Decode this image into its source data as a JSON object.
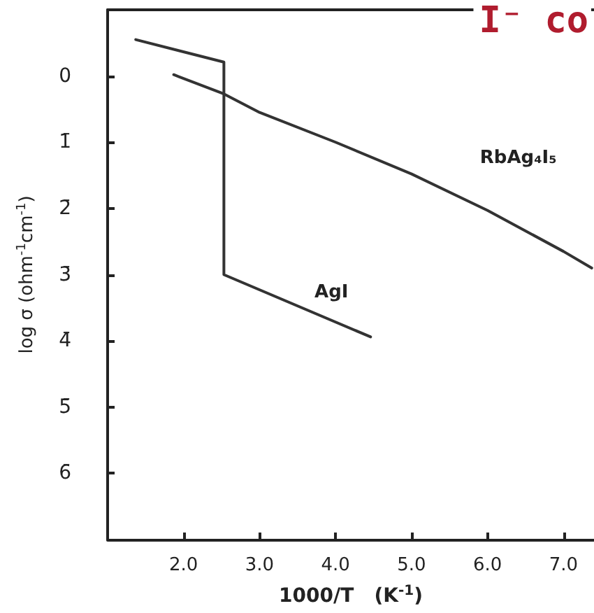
{
  "chart_data": {
    "type": "line",
    "xlabel": "1000/T   (K$^{-1}$)",
    "ylabel": "log σ (ohm$^{-1}$cm$^{-1}$)",
    "xlim": [
      1.0,
      7.4
    ],
    "ylim": [
      -7,
      1
    ],
    "xticks": [
      {
        "value": 2,
        "label": "2.0"
      },
      {
        "value": 3,
        "label": "3.0"
      },
      {
        "value": 4,
        "label": "4.0"
      },
      {
        "value": 5,
        "label": "5.0"
      },
      {
        "value": 6,
        "label": "6.0"
      },
      {
        "value": 7,
        "label": "7.0"
      }
    ],
    "yticks": [
      {
        "value": 0,
        "label": "0"
      },
      {
        "value": -1,
        "label": "1̄"
      },
      {
        "value": -2,
        "label": "2̄"
      },
      {
        "value": -3,
        "label": "3̄"
      },
      {
        "value": -4,
        "label": "4̄"
      },
      {
        "value": -5,
        "label": "5̄"
      },
      {
        "value": -6,
        "label": "6̄"
      }
    ],
    "grid": false,
    "legend": false,
    "marker": "none",
    "line_style": "solid",
    "annotations": [
      "I⁻ co"
    ],
    "series": [
      {
        "name": "RbAg₄I₅",
        "color": "#333333",
        "x": [
          1.87,
          2.53,
          3.0,
          4.0,
          5.0,
          6.0,
          7.0,
          7.37
        ],
        "values": [
          0.02,
          -0.27,
          -0.55,
          -1.0,
          -1.48,
          -2.03,
          -2.65,
          -2.9
        ]
      },
      {
        "name": "AgI",
        "color": "#333333",
        "x": [
          1.37,
          2.53,
          2.53,
          4.46
        ],
        "values": [
          0.55,
          0.21,
          -3.0,
          -3.94
        ]
      }
    ]
  }
}
